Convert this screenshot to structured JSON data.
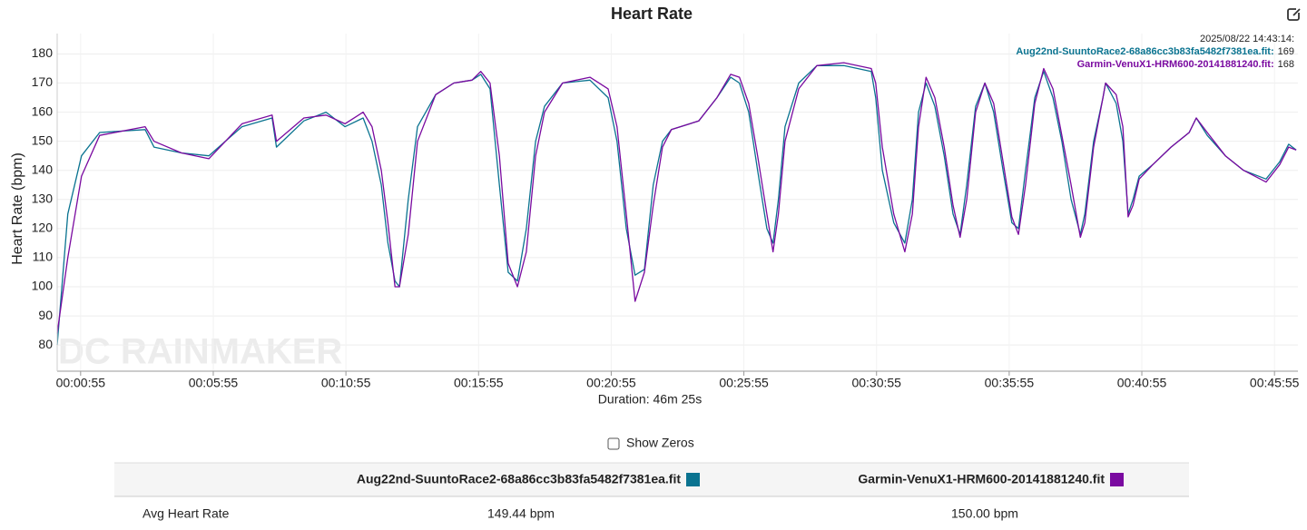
{
  "chart_data": {
    "type": "line",
    "title": "Heart Rate",
    "ylabel": "Heart Rate (bpm)",
    "xlabel": "Duration: 46m 25s",
    "watermark": "DC RAINMAKER",
    "xlim": [
      2,
      2808
    ],
    "ylim": [
      71,
      187
    ],
    "grid": true,
    "yticks": [
      80,
      90,
      100,
      110,
      120,
      130,
      140,
      150,
      160,
      170,
      180
    ],
    "xticks": [
      {
        "value": 55,
        "label": "00:00:55"
      },
      {
        "value": 355,
        "label": "00:05:55"
      },
      {
        "value": 655,
        "label": "00:10:55"
      },
      {
        "value": 955,
        "label": "00:15:55"
      },
      {
        "value": 1255,
        "label": "00:20:55"
      },
      {
        "value": 1555,
        "label": "00:25:55"
      },
      {
        "value": 1855,
        "label": "00:30:55"
      },
      {
        "value": 2155,
        "label": "00:35:55"
      },
      {
        "value": 2455,
        "label": "00:40:55"
      },
      {
        "value": 2755,
        "label": "00:45:55"
      }
    ],
    "x": [
      2,
      26,
      57,
      98,
      201,
      221,
      283,
      345,
      420,
      488,
      498,
      560,
      610,
      653,
      694,
      714,
      735,
      750,
      766,
      776,
      796,
      817,
      858,
      899,
      940,
      960,
      981,
      1002,
      1022,
      1043,
      1063,
      1084,
      1104,
      1145,
      1207,
      1248,
      1268,
      1289,
      1309,
      1330,
      1350,
      1371,
      1391,
      1453,
      1494,
      1525,
      1545,
      1566,
      1586,
      1607,
      1621,
      1633,
      1648,
      1679,
      1720,
      1781,
      1843,
      1853,
      1868,
      1894,
      1919,
      1936,
      1950,
      1967,
      1987,
      2008,
      2028,
      2044,
      2059,
      2079,
      2100,
      2120,
      2141,
      2161,
      2176,
      2192,
      2213,
      2233,
      2254,
      2274,
      2295,
      2316,
      2326,
      2346,
      2367,
      2373,
      2397,
      2412,
      2424,
      2435,
      2449,
      2480,
      2521,
      2562,
      2578,
      2603,
      2644,
      2685,
      2736,
      2767,
      2787,
      2804
    ],
    "series": [
      {
        "name": "Aug22nd-SuuntoRace2-68a86cc3b83fa5482f7381ea.fit",
        "color": "#0a7390",
        "values": [
          80,
          125,
          145,
          153,
          154,
          148,
          146,
          145,
          155,
          158,
          148,
          157,
          160,
          155,
          158,
          150,
          135,
          115,
          102,
          100,
          130,
          155,
          166,
          170,
          171,
          173,
          168,
          135,
          105,
          102,
          120,
          150,
          162,
          170,
          171,
          165,
          150,
          120,
          104,
          106,
          135,
          150,
          154,
          157,
          165,
          172,
          170,
          160,
          140,
          120,
          115,
          130,
          155,
          170,
          176,
          176,
          174,
          165,
          140,
          122,
          115,
          130,
          160,
          170,
          162,
          145,
          125,
          118,
          135,
          162,
          170,
          160,
          140,
          122,
          120,
          140,
          165,
          174,
          165,
          150,
          130,
          118,
          125,
          150,
          165,
          170,
          163,
          150,
          125,
          130,
          138,
          142,
          148,
          153,
          158,
          152,
          145,
          140,
          137,
          143,
          149,
          147
        ]
      },
      {
        "name": "Garmin-VenuX1-HRM600-20141881240.fit",
        "color": "#7a0aa0",
        "values": [
          84,
          110,
          138,
          152,
          155,
          150,
          146,
          144,
          156,
          159,
          150,
          158,
          159,
          156,
          160,
          155,
          140,
          122,
          100,
          100,
          118,
          150,
          166,
          170,
          171,
          174,
          170,
          145,
          108,
          100,
          112,
          145,
          160,
          170,
          172,
          168,
          155,
          125,
          95,
          105,
          128,
          148,
          154,
          157,
          165,
          173,
          172,
          163,
          145,
          125,
          112,
          125,
          150,
          168,
          176,
          177,
          175,
          170,
          148,
          125,
          112,
          125,
          155,
          172,
          165,
          148,
          128,
          117,
          130,
          160,
          170,
          163,
          143,
          124,
          118,
          135,
          163,
          175,
          168,
          152,
          135,
          117,
          122,
          148,
          165,
          170,
          166,
          155,
          124,
          128,
          137,
          142,
          148,
          153,
          158,
          153,
          145,
          140,
          136,
          142,
          148,
          147
        ]
      }
    ]
  },
  "tooltip": {
    "time": "2025/08/22 14:43:14:",
    "entries": [
      {
        "label": "Aug22nd-SuuntoRace2-68a86cc3b83fa5482f7381ea.fit:",
        "value": 169
      },
      {
        "label": "Garmin-VenuX1-HRM600-20141881240.fit:",
        "value": 168
      }
    ]
  },
  "controls": {
    "show_zeros": "Show Zeros"
  },
  "table": {
    "columns": [
      "Aug22nd-SuuntoRace2-68a86cc3b83fa5482f7381ea.fit",
      "Garmin-VenuX1-HRM600-20141881240.fit"
    ],
    "rows": [
      [
        "Avg Heart Rate",
        "149.44 bpm",
        "150.00 bpm"
      ]
    ]
  }
}
